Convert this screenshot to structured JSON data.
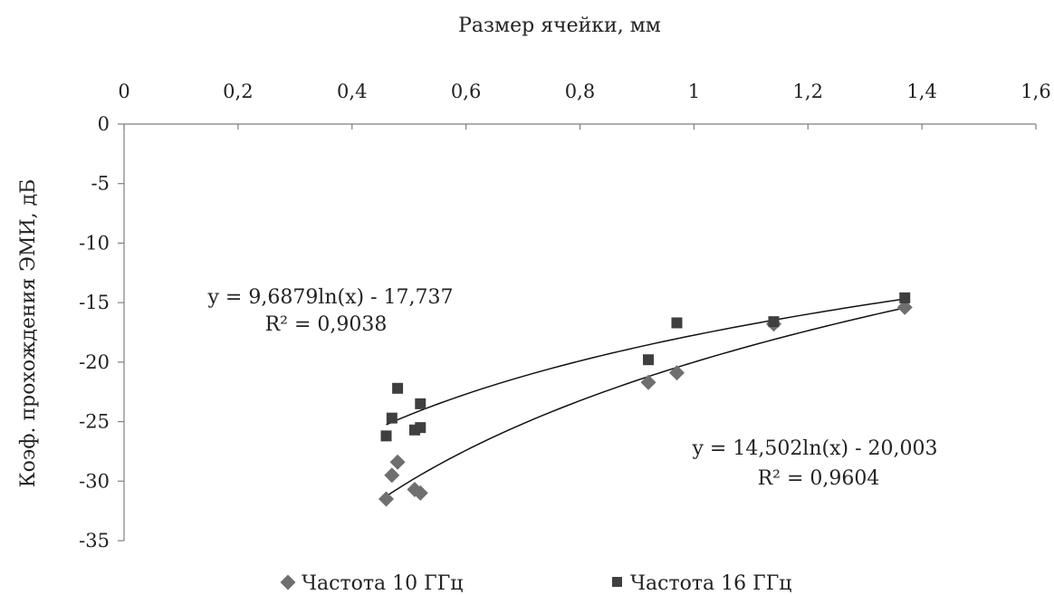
{
  "chart_data": {
    "type": "scatter",
    "xlabel": "Размер ячейки, мм",
    "ylabel": "Коэф. прохождения ЭМИ, дБ",
    "xlim": [
      0,
      1.6
    ],
    "ylim": [
      -35,
      0
    ],
    "x_ticks": [
      "0",
      "0,2",
      "0,4",
      "0,6",
      "0,8",
      "1",
      "1,2",
      "1,4",
      "1,6"
    ],
    "y_ticks": [
      "0",
      "-5",
      "-10",
      "-15",
      "-20",
      "-25",
      "-30",
      "-35"
    ],
    "x_axis_position": "top",
    "grid": false,
    "legend_position": "bottom",
    "series": [
      {
        "name": "Частота 10 ГГц",
        "marker": "diamond",
        "color": "#6f6f6f",
        "points": [
          {
            "x": 0.46,
            "y": -31.5
          },
          {
            "x": 0.47,
            "y": -29.5
          },
          {
            "x": 0.48,
            "y": -28.4
          },
          {
            "x": 0.51,
            "y": -30.7
          },
          {
            "x": 0.52,
            "y": -31.0
          },
          {
            "x": 0.92,
            "y": -21.7
          },
          {
            "x": 0.97,
            "y": -20.9
          },
          {
            "x": 1.14,
            "y": -16.8
          },
          {
            "x": 1.37,
            "y": -15.4
          }
        ],
        "trendline": {
          "type": "log",
          "a": 14.502,
          "b": -20.003,
          "x_range": [
            0.46,
            1.37
          ]
        },
        "equation": "y = 14,502ln(x) - 20,003",
        "r2": "R² = 0,9604"
      },
      {
        "name": "Частота 16 ГГц",
        "marker": "square",
        "color": "#3f3f3f",
        "points": [
          {
            "x": 0.46,
            "y": -26.2
          },
          {
            "x": 0.47,
            "y": -24.7
          },
          {
            "x": 0.48,
            "y": -22.2
          },
          {
            "x": 0.51,
            "y": -25.7
          },
          {
            "x": 0.52,
            "y": -23.5
          },
          {
            "x": 0.52,
            "y": -25.5
          },
          {
            "x": 0.92,
            "y": -19.8
          },
          {
            "x": 0.97,
            "y": -16.7
          },
          {
            "x": 1.14,
            "y": -16.6
          },
          {
            "x": 1.37,
            "y": -14.6
          }
        ],
        "trendline": {
          "type": "log",
          "a": 9.6879,
          "b": -17.737,
          "x_range": [
            0.46,
            1.37
          ]
        },
        "equation": "y = 9,6879ln(x) - 17,737",
        "r2": "R² = 0,9038"
      }
    ]
  }
}
